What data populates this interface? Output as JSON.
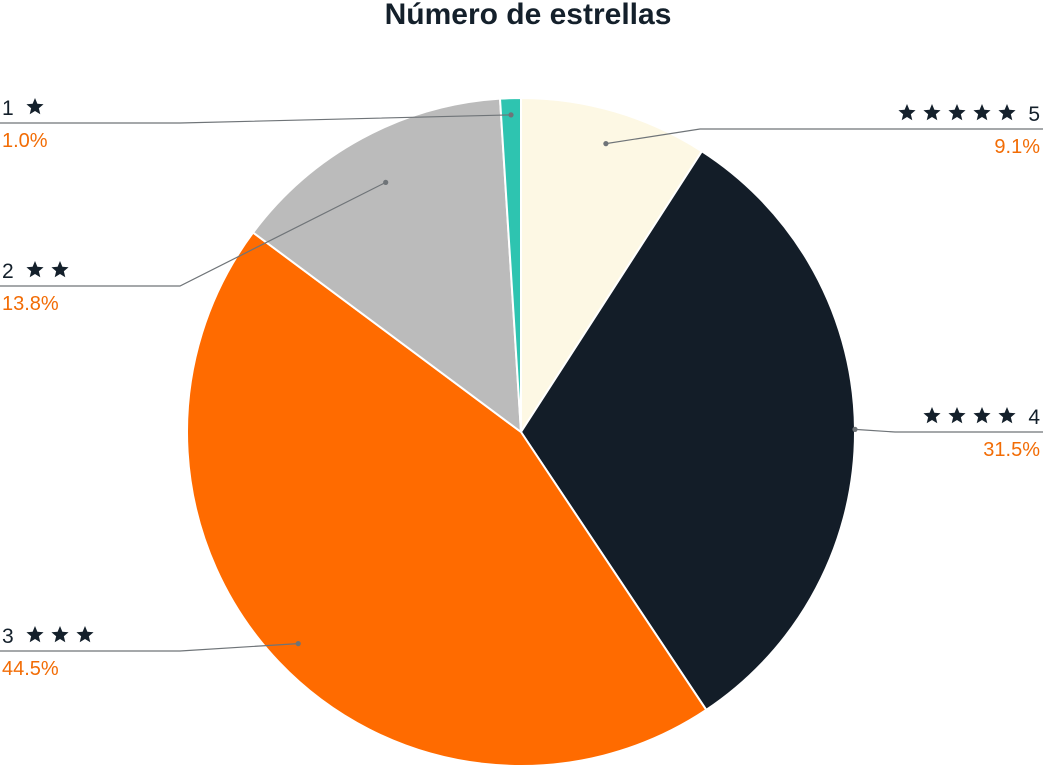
{
  "chart_data": {
    "type": "pie",
    "title": "Número de estrellas",
    "start_angle_deg": 0,
    "direction": "clockwise",
    "slices": [
      {
        "label": "5",
        "stars": 5,
        "value": 9.1,
        "pct_label": "9.1%",
        "color": "#fdf8e4"
      },
      {
        "label": "4",
        "stars": 4,
        "value": 31.5,
        "pct_label": "31.5%",
        "color": "#131d28"
      },
      {
        "label": "3",
        "stars": 3,
        "value": 44.5,
        "pct_label": "44.5%",
        "color": "#ff6b00"
      },
      {
        "label": "2",
        "stars": 2,
        "value": 13.8,
        "pct_label": "13.8%",
        "color": "#bbbbbb"
      },
      {
        "label": "1",
        "stars": 1,
        "value": 1.0,
        "pct_label": "1.0%",
        "color": "#2ec4b0"
      }
    ],
    "label_colors": {
      "name": "#14202b",
      "percent": "#f26c05",
      "leader": "#6f7478"
    }
  }
}
